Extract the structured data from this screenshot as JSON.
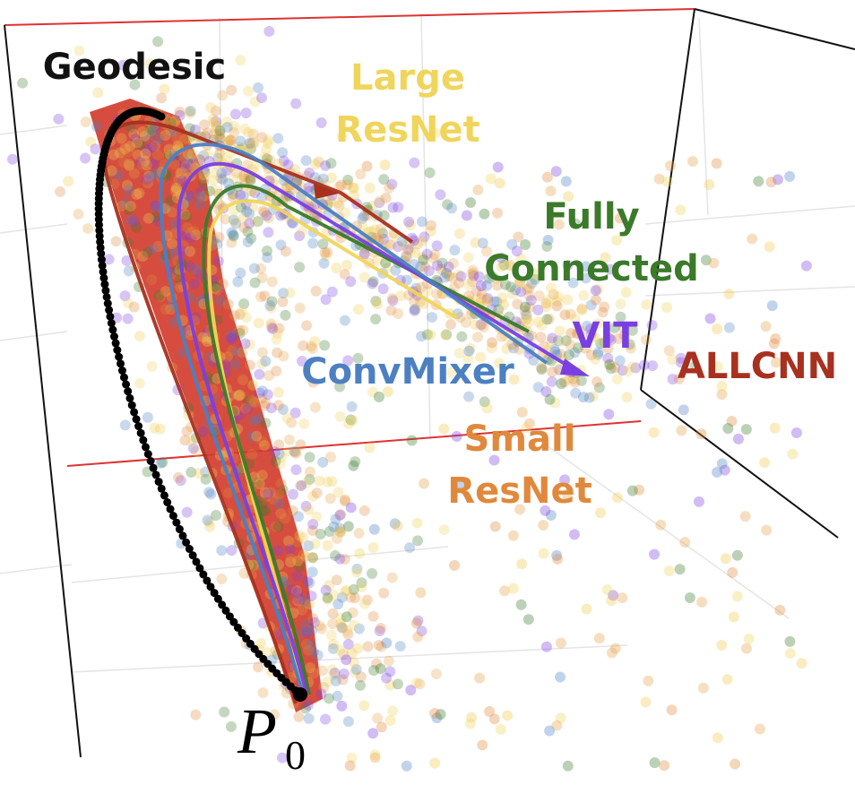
{
  "figure": {
    "labels": [
      {
        "lines": [
          "Geodesic"
        ],
        "color": "#111111"
      },
      {
        "lines": [
          "Large",
          "ResNet"
        ],
        "color": "#f0d55c"
      },
      {
        "lines": [
          "Fully",
          "Connected"
        ],
        "color": "#3b7a2a"
      },
      {
        "lines": [
          "VIT"
        ],
        "color": "#7a3fe0"
      },
      {
        "lines": [
          "ALLCNN"
        ],
        "color": "#a8301f"
      },
      {
        "lines": [
          "ConvMixer"
        ],
        "color": "#4c80c2"
      },
      {
        "lines": [
          "Small",
          "ResNet"
        ],
        "color": "#e0893c"
      }
    ],
    "origin": {
      "base": "P",
      "subscript": "0"
    }
  }
}
